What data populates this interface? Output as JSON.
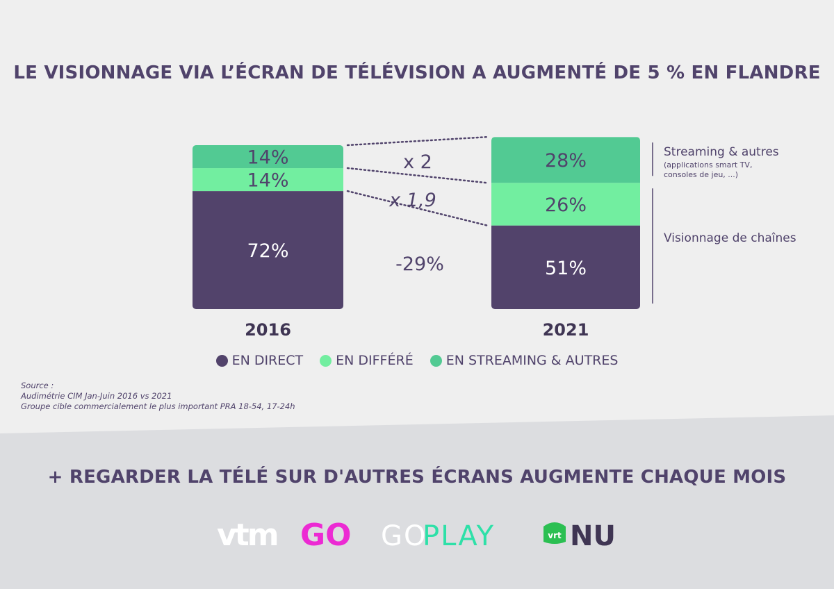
{
  "main_title": "LE VISIONNAGE VIA L’ÉCRAN DE TÉLÉVISION A AUGMENTÉ DE 5 % EN FLANDRE",
  "sub_title": "+ REGARDER LA TÉLÉ SUR D'AUTRES ÉCRANS AUGMENTE CHAQUE MOIS",
  "colors": {
    "direct": "#52436b",
    "differe": "#72eea0",
    "streaming": "#52ca93",
    "text": "#50436b",
    "vtm_go": "#ec2ad3",
    "goplay": "#2ee0a8",
    "vrt_nu": "#2bbf52"
  },
  "chart_data": {
    "type": "bar",
    "stacked": true,
    "categories": [
      "2016",
      "2021"
    ],
    "series": [
      {
        "name": "EN DIRECT",
        "values": [
          72,
          51
        ],
        "labels": [
          "72%",
          "51%"
        ]
      },
      {
        "name": "EN DIFFÉRÉ",
        "values": [
          14,
          26
        ],
        "labels": [
          "14%",
          "26%"
        ]
      },
      {
        "name": "EN STREAMING & AUTRES",
        "values": [
          14,
          28
        ],
        "labels": [
          "14%",
          "28%"
        ]
      }
    ],
    "annotations": [
      "x 2",
      "x 1,9",
      "-29%"
    ],
    "brackets": {
      "streaming": {
        "label": "Streaming & autres",
        "note_lines": [
          "(applications smart TV,",
          "consoles de jeu, ...)"
        ]
      },
      "channels": {
        "label": "Visionnage de chaînes"
      }
    }
  },
  "source": {
    "lines": [
      "Source :",
      "Audimétrie CIM Jan-Juin 2016 vs 2021",
      "Groupe cible commercialement le plus important PRA 18-54, 17-24h"
    ]
  },
  "logos": {
    "vtm": "vtm",
    "vtm_go": "GO",
    "goplay_go": "GO",
    "goplay_play": "PLAY",
    "vrt": "vrt",
    "nu": "NU"
  }
}
